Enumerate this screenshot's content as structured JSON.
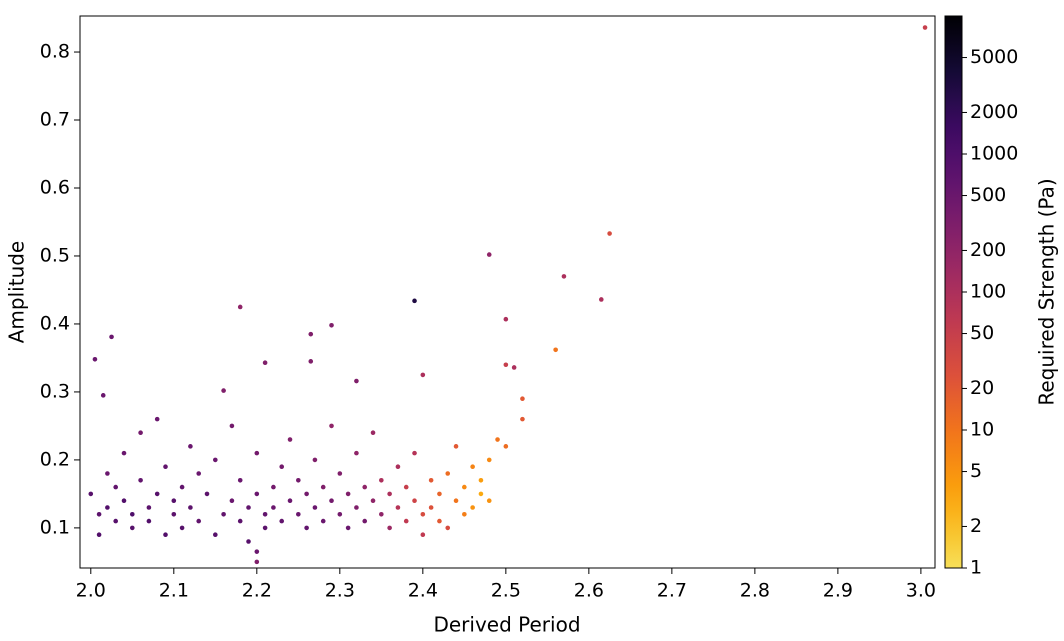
{
  "chart_data": {
    "type": "scatter",
    "x_label": "Derived Period",
    "y_label": "Amplitude",
    "colorbar_label": "Required Strength (Pa)",
    "colormap": "inferno_r",
    "color_scale": "log",
    "xlim": [
      1.987,
      3.017
    ],
    "ylim": [
      0.041,
      0.853
    ],
    "clim": [
      1,
      10000
    ],
    "xticks": [
      {
        "value": 2,
        "label": "2.0"
      },
      2.1,
      2.2,
      2.3,
      2.4,
      2.5,
      2.6,
      2.7,
      2.8,
      2.9,
      {
        "value": 3,
        "label": "3.0"
      }
    ],
    "yticks": [
      0.1,
      0.2,
      0.3,
      0.4,
      0.5,
      0.6,
      0.7,
      0.8
    ],
    "cticks": [
      1,
      2,
      5,
      10,
      20,
      50,
      100,
      200,
      500,
      1000,
      2000,
      5000
    ],
    "x": [
      2.0,
      2.01,
      2.01,
      2.02,
      2.02,
      2.03,
      2.03,
      2.04,
      2.04,
      2.05,
      2.05,
      2.06,
      2.06,
      2.07,
      2.07,
      2.08,
      2.08,
      2.09,
      2.09,
      2.1,
      2.1,
      2.11,
      2.11,
      2.12,
      2.12,
      2.13,
      2.13,
      2.14,
      2.15,
      2.15,
      2.16,
      2.17,
      2.17,
      2.18,
      2.18,
      2.19,
      2.19,
      2.2,
      2.2,
      2.21,
      2.21,
      2.22,
      2.22,
      2.23,
      2.23,
      2.24,
      2.24,
      2.25,
      2.25,
      2.26,
      2.26,
      2.27,
      2.27,
      2.28,
      2.28,
      2.29,
      2.29,
      2.3,
      2.3,
      2.31,
      2.31,
      2.32,
      2.32,
      2.33,
      2.33,
      2.34,
      2.34,
      2.35,
      2.35,
      2.36,
      2.36,
      2.37,
      2.37,
      2.38,
      2.38,
      2.39,
      2.39,
      2.4,
      2.4,
      2.41,
      2.41,
      2.42,
      2.42,
      2.43,
      2.43,
      2.44,
      2.44,
      2.45,
      2.45,
      2.46,
      2.46,
      2.47,
      2.47,
      2.48,
      2.48,
      2.49,
      2.5,
      2.005,
      2.025,
      2.015,
      2.18,
      2.21,
      2.265,
      2.29,
      2.265,
      2.39,
      2.48,
      2.5,
      2.57,
      2.615,
      2.625,
      2.56,
      3.005,
      2.52,
      2.52,
      2.5,
      2.51,
      2.4,
      2.32,
      2.2,
      2.2,
      2.16
    ],
    "values": [
      0.15,
      0.12,
      0.09,
      0.18,
      0.13,
      0.11,
      0.16,
      0.14,
      0.21,
      0.1,
      0.12,
      0.17,
      0.24,
      0.11,
      0.13,
      0.15,
      0.26,
      0.09,
      0.19,
      0.12,
      0.14,
      0.16,
      0.1,
      0.22,
      0.13,
      0.11,
      0.18,
      0.15,
      0.09,
      0.2,
      0.12,
      0.14,
      0.25,
      0.11,
      0.17,
      0.13,
      0.08,
      0.15,
      0.21,
      0.12,
      0.1,
      0.16,
      0.13,
      0.19,
      0.11,
      0.14,
      0.23,
      0.12,
      0.17,
      0.1,
      0.15,
      0.13,
      0.2,
      0.11,
      0.16,
      0.14,
      0.25,
      0.12,
      0.18,
      0.1,
      0.15,
      0.13,
      0.21,
      0.11,
      0.16,
      0.14,
      0.24,
      0.12,
      0.17,
      0.1,
      0.15,
      0.13,
      0.19,
      0.11,
      0.16,
      0.14,
      0.21,
      0.12,
      0.09,
      0.17,
      0.13,
      0.11,
      0.15,
      0.18,
      0.1,
      0.14,
      0.22,
      0.12,
      0.16,
      0.13,
      0.19,
      0.15,
      0.17,
      0.2,
      0.14,
      0.23,
      0.22,
      0.348,
      0.381,
      0.295,
      0.425,
      0.343,
      0.385,
      0.398,
      0.345,
      0.434,
      0.502,
      0.407,
      0.47,
      0.436,
      0.533,
      0.362,
      0.836,
      0.29,
      0.26,
      0.34,
      0.336,
      0.325,
      0.316,
      0.05,
      0.065,
      0.302
    ],
    "color_values": [
      800,
      700,
      900,
      500,
      900,
      800,
      600,
      900,
      500,
      800,
      1000,
      600,
      400,
      900,
      700,
      800,
      500,
      900,
      600,
      700,
      800,
      600,
      800,
      500,
      700,
      600,
      500,
      700,
      800,
      500,
      600,
      500,
      400,
      700,
      500,
      600,
      800,
      500,
      400,
      600,
      700,
      400,
      500,
      400,
      600,
      500,
      300,
      500,
      400,
      600,
      400,
      500,
      300,
      500,
      300,
      400,
      200,
      400,
      300,
      500,
      300,
      300,
      200,
      400,
      200,
      200,
      150,
      200,
      100,
      150,
      100,
      80,
      100,
      60,
      50,
      40,
      80,
      30,
      60,
      20,
      25,
      20,
      15,
      12,
      30,
      10,
      20,
      8,
      6,
      5,
      7,
      3,
      4,
      6,
      5,
      10,
      12,
      500,
      500,
      500,
      200,
      300,
      300,
      300,
      300,
      3000,
      200,
      100,
      100,
      100,
      30,
      10,
      50,
      20,
      20,
      50,
      100,
      100,
      300,
      300,
      500,
      300
    ]
  }
}
